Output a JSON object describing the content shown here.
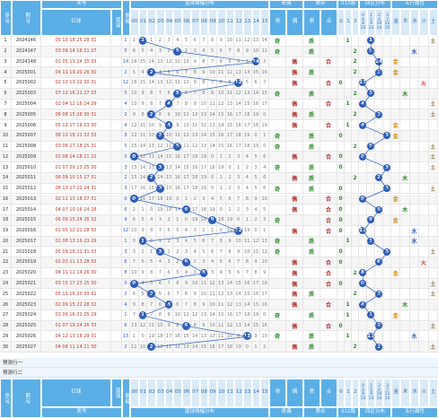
{
  "header": {
    "seq": "序号",
    "issue": "期号",
    "prize": "奖号",
    "red": "红球",
    "blue_a": "蓝球",
    "blue_b": "振幅",
    "dist": "蓝球振幅分布",
    "odd": "奇",
    "even": "偶",
    "big": "质",
    "comp": "合",
    "mod": "012路",
    "zone": "四区分布",
    "wuxing": "五行属性"
  },
  "dist_cols": [
    "00",
    "01",
    "02",
    "03",
    "04",
    "05",
    "06",
    "07",
    "08",
    "09",
    "10",
    "11",
    "12",
    "13",
    "14",
    "15"
  ],
  "mod_cols": [
    "0",
    "1",
    "2"
  ],
  "zone_top": [
    [
      "0",
      "4",
      "8",
      "12"
    ],
    [
      "1",
      "5",
      "9",
      "13"
    ],
    [
      "2",
      "6",
      "10",
      "14"
    ],
    [
      "3",
      "7",
      "11",
      "15"
    ]
  ],
  "wuxing_cols": [
    "金",
    "木",
    "水",
    "火",
    "土"
  ],
  "rows": [
    {
      "seq": "1",
      "issue": "2024146",
      "red": "05 10 18 25 28 31",
      "b": "",
      "amp": "1",
      "w": "土"
    },
    {
      "seq": "2",
      "issue": "2024147",
      "red": "03 09 14 18 21 27",
      "b": "",
      "amp": "5",
      "w": "水"
    },
    {
      "seq": "3",
      "issue": "2024148",
      "red": "01 05 13 24 30 33",
      "b": "",
      "amp": "14",
      "w": "金"
    },
    {
      "seq": "4",
      "issue": "2025001",
      "red": "04 11 19 20 26 30",
      "b": "",
      "amp": "2",
      "w": "金"
    },
    {
      "seq": "5",
      "issue": "2025002",
      "red": "02 10 13 22 30 31",
      "b": "",
      "amp": "12",
      "w": "火"
    },
    {
      "seq": "6",
      "issue": "2025003",
      "red": "07 11 16 21 27 33",
      "b": "",
      "amp": "5",
      "w": "木"
    },
    {
      "seq": "7",
      "issue": "2025004",
      "red": "02 04 12 16 24 29",
      "b": "",
      "amp": "4",
      "w": "土"
    },
    {
      "seq": "8",
      "issue": "2025005",
      "red": "06 08 15 26 30 31",
      "b": "",
      "amp": "2",
      "w": "土"
    },
    {
      "seq": "9",
      "issue": "2025006",
      "red": "05 12 17 19 23 30",
      "b": "",
      "amp": "4",
      "w": "金"
    },
    {
      "seq": "10",
      "issue": "2025007",
      "red": "08 10 18 22 32 33",
      "b": "",
      "amp": "3",
      "w": "金"
    },
    {
      "seq": "11",
      "issue": "2025008",
      "red": "03 06 17 18 25 31",
      "b": "",
      "amp": "5",
      "w": "土"
    },
    {
      "seq": "12",
      "issue": "2025009",
      "red": "02 08 14 18 21 22",
      "b": "",
      "amp": "0",
      "w": "土"
    },
    {
      "seq": "13",
      "issue": "2025010",
      "red": "01 07 09 23 25 30",
      "b": "",
      "amp": "3",
      "w": "土"
    },
    {
      "seq": "14",
      "issue": "2025011",
      "red": "06 09 10 15 27 31",
      "b": "",
      "amp": "2",
      "w": "木"
    },
    {
      "seq": "15",
      "issue": "2025012",
      "red": "08 13 17 22 24 31",
      "b": "",
      "amp": "3",
      "w": "土"
    },
    {
      "seq": "16",
      "issue": "2025013",
      "red": "02 11 13 18 27 31",
      "b": "",
      "amp": "0",
      "w": "金"
    },
    {
      "seq": "17",
      "issue": "2025014",
      "red": "04 07 10 16 24 28",
      "b": "",
      "amp": "6",
      "w": "木"
    },
    {
      "seq": "18",
      "issue": "2025015",
      "red": "06 09 15 24 26 32",
      "b": "",
      "amp": "9",
      "w": "金"
    },
    {
      "seq": "19",
      "issue": "2025016",
      "red": "01 05 12 21 28 32",
      "b": "",
      "amp": "12",
      "w": "水"
    },
    {
      "seq": "20",
      "issue": "2025017",
      "red": "02 08 13 16 23 29",
      "b": "",
      "amp": "1",
      "w": "水"
    },
    {
      "seq": "21",
      "issue": "2025018",
      "red": "05 09 18 22 31 33",
      "b": "",
      "amp": "3",
      "w": "土"
    },
    {
      "seq": "22",
      "issue": "2025019",
      "red": "02 03 11 13 28 32",
      "b": "",
      "amp": "6",
      "w": "火"
    },
    {
      "seq": "23",
      "issue": "2025020",
      "red": "04 11 12 14 26 30",
      "b": "",
      "amp": "8",
      "w": "金"
    },
    {
      "seq": "24",
      "issue": "2025021",
      "red": "03 15 17 23 25 30",
      "b": "",
      "amp": "0",
      "w": "土"
    },
    {
      "seq": "25",
      "issue": "2025022",
      "red": "05 11 16 20 30 31",
      "b": "",
      "amp": "2",
      "w": "土"
    },
    {
      "seq": "26",
      "issue": "2025023",
      "red": "02 09 15 22 28 32",
      "b": "",
      "amp": "4",
      "w": "木"
    },
    {
      "seq": "27",
      "issue": "2025024",
      "red": "03 06 16 21 25 29",
      "b": "",
      "amp": "1",
      "w": "金"
    },
    {
      "seq": "28",
      "issue": "2025025",
      "red": "01 07 19 24 26 33",
      "b": "",
      "amp": "6",
      "w": "土"
    },
    {
      "seq": "29",
      "issue": "2025026",
      "red": "04 12 13 18 29 31",
      "b": "",
      "amp": "13",
      "w": "水"
    },
    {
      "seq": "30",
      "issue": "2025027",
      "red": "04 08 11 14 21 30",
      "b": "",
      "amp": "2",
      "w": "土"
    }
  ],
  "pred1": "预测行一",
  "pred2": "预测行二"
}
